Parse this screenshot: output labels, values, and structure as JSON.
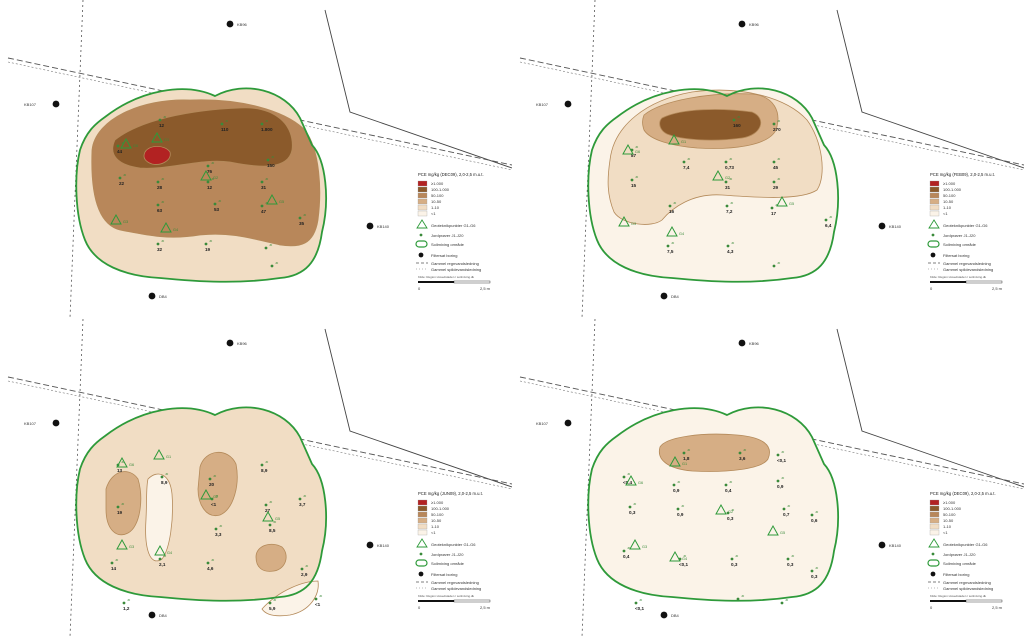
{
  "colors": {
    "class_gt1000": "#b22222",
    "class_100_1000": "#8b5a2b",
    "class_50_100": "#b8875a",
    "class_10_50": "#d6ae85",
    "class_1_10": "#f1ddc4",
    "class_lt1": "#fbf3e8",
    "outline_green": "#2e9a3a",
    "text_dark": "#222222",
    "text_green": "#3a8a3a"
  },
  "common": {
    "wells": {
      "kb96": "KB96",
      "kb107": "KB107",
      "kb140": "KB140",
      "db4": "DB4"
    },
    "legend": {
      "classes": [
        "≥1.000",
        "100-1.000",
        "50-100",
        "10-50",
        "1-10",
        "<1"
      ],
      "geoteknik": "Geoteknikpunkter G1-G6",
      "jordprover": "Jordprøver J1-J20",
      "soil_region": "Soilmixing område",
      "filtered_boring": "Filtersat boring",
      "old_rain_drain": "Gammel regnvandsledning",
      "old_waste_drain": "Gammel spildevandsledning",
      "source_note": "Kilde: Region Hovedstaden / soilmixing.dk",
      "scale_start": "0",
      "scale_end": "2,5 m",
      "mark_sample": "J0",
      "mark_geotek": "G0"
    }
  },
  "maps": [
    {
      "legend_title": "PCE mg/kg (DEC09), 2,0-2,5 m.u.t.",
      "g_labels": [
        "G1",
        "G2",
        "G3",
        "G4",
        "G5",
        "G6"
      ],
      "values": [
        "12",
        "110",
        "1.800",
        "44",
        "76",
        "150",
        "22",
        "28",
        "12",
        "31",
        "63",
        "53",
        "47",
        "35",
        "32",
        "19"
      ]
    },
    {
      "legend_title": "PCE mg/kg (FEB09), 2,0-2,5 m.u.t.",
      "g_labels": [
        "G1",
        "G2",
        "G3",
        "G4",
        "G5",
        "G6"
      ],
      "values": [
        "160",
        "270",
        "87",
        "7,4",
        "0,73",
        "45",
        "15",
        "31",
        "29",
        "16",
        "7,2",
        "17",
        "6,4",
        "7,5",
        "4,3"
      ]
    },
    {
      "legend_title": "PCE mg/kg (JUN09), 2,0-2,5 m.u.t.",
      "g_labels": [
        "G1",
        "G2",
        "G3",
        "G4",
        "G5",
        "G6"
      ],
      "values": [
        "13",
        "8,9",
        "20",
        "8,9",
        "19",
        "<1",
        "27",
        "3,7",
        "3,3",
        "8,5",
        "14",
        "2,1",
        "4,6",
        "2,9",
        "1,2",
        "5,9",
        "<1"
      ]
    },
    {
      "legend_title": "PCE mg/kg (DEC09), 2,0-2,5 m.u.t.",
      "g_labels": [
        "G1",
        "G2",
        "G3",
        "G4",
        "G5",
        "G6"
      ],
      "values": [
        "1,8",
        "3,6",
        "<0,1",
        "<0,4",
        "0,9",
        "0,4",
        "0,9",
        "0,3",
        "0,9",
        "0,3",
        "0,7",
        "0,6",
        "0,4",
        "<0,1",
        "0,3",
        "0,3",
        "0,3",
        "<0,1"
      ]
    }
  ]
}
